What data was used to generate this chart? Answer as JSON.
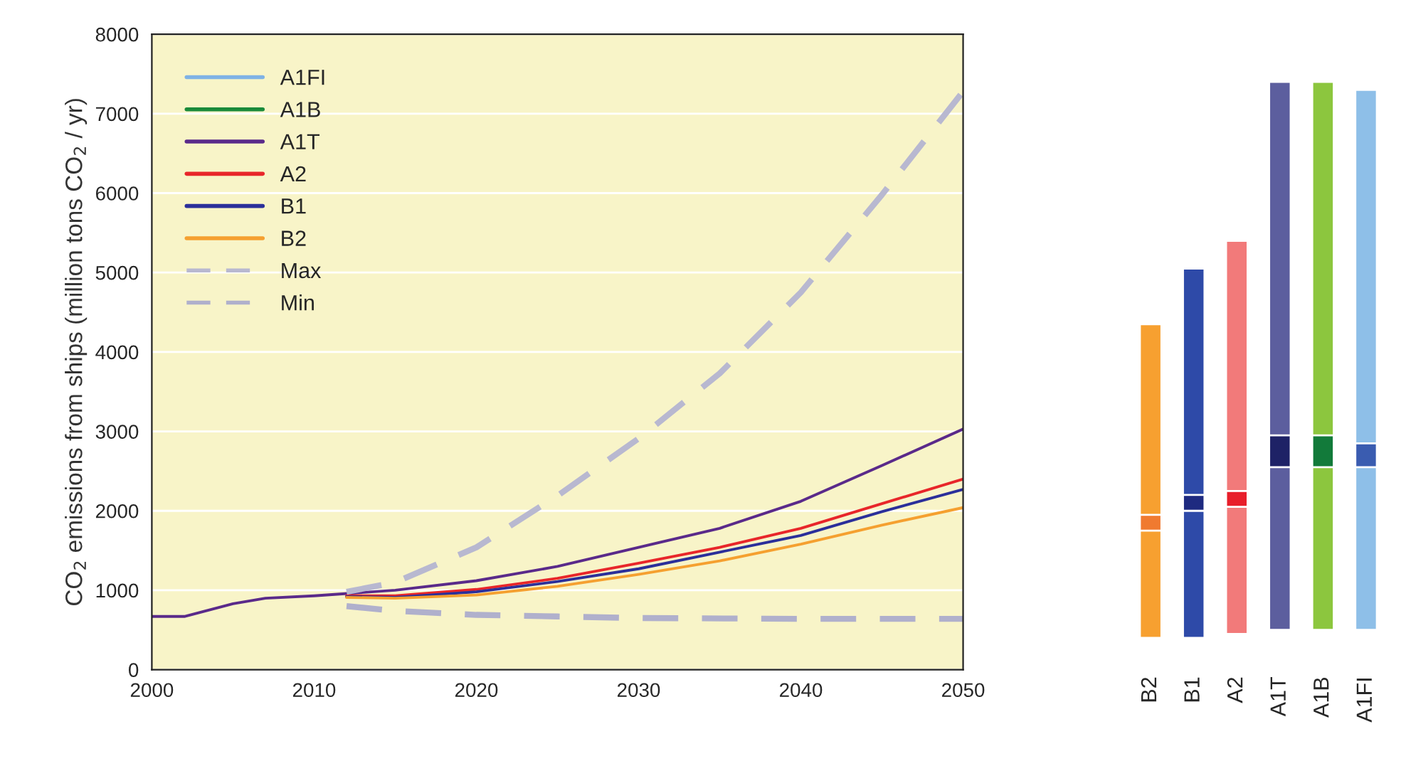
{
  "chart_data": [
    {
      "type": "line",
      "ylabel": "CO$_{2}$ emissions from ships (million tons CO$_{2}$ / yr)",
      "xlim": [
        2000,
        2050
      ],
      "xticks": [
        2000,
        2010,
        2020,
        2030,
        2040,
        2050
      ],
      "ylim": [
        0,
        8000
      ],
      "yticks": [
        0,
        1000,
        2000,
        3000,
        4000,
        5000,
        6000,
        7000,
        8000
      ],
      "grid": "y",
      "legend": "top left",
      "series": [
        {
          "name": "A1FI",
          "color": "#7fb2e5"
        },
        {
          "name": "A1B",
          "color": "#1a8a3a"
        },
        {
          "name": "A1T",
          "color": "#5a2a8a",
          "x": [
            2000,
            2002,
            2005,
            2007,
            2010,
            2015,
            2020,
            2025,
            2030,
            2035,
            2040,
            2045,
            2050
          ],
          "values": [
            670,
            670,
            830,
            900,
            930,
            1000,
            1120,
            1300,
            1540,
            1780,
            2120,
            2570,
            3030
          ]
        },
        {
          "name": "A2",
          "color": "#e8262a",
          "x": [
            2012,
            2015,
            2020,
            2025,
            2030,
            2035,
            2040,
            2045,
            2050
          ],
          "values": [
            930,
            930,
            1010,
            1150,
            1340,
            1540,
            1780,
            2090,
            2400
          ]
        },
        {
          "name": "B1",
          "color": "#2b2f9a",
          "x": [
            2012,
            2015,
            2020,
            2025,
            2030,
            2035,
            2040,
            2045,
            2050
          ],
          "values": [
            920,
            910,
            980,
            1110,
            1270,
            1480,
            1690,
            1990,
            2270
          ]
        },
        {
          "name": "B2",
          "color": "#f5a030",
          "x": [
            2012,
            2015,
            2020,
            2025,
            2030,
            2035,
            2040,
            2045,
            2050
          ],
          "values": [
            910,
            900,
            940,
            1050,
            1200,
            1370,
            1580,
            1820,
            2040
          ]
        },
        {
          "name": "Max",
          "color": "#b8b8d0",
          "line_style": "dashed",
          "x": [
            2012,
            2015,
            2020,
            2025,
            2030,
            2035,
            2040,
            2045,
            2050
          ],
          "values": [
            980,
            1100,
            1540,
            2190,
            2910,
            3730,
            4750,
            5980,
            7280
          ]
        },
        {
          "name": "Min",
          "color": "#b0b0cc",
          "line_style": "dashed",
          "x": [
            2012,
            2015,
            2020,
            2025,
            2030,
            2040,
            2050
          ],
          "values": [
            800,
            740,
            690,
            670,
            650,
            640,
            640
          ]
        }
      ]
    },
    {
      "type": "bar",
      "categories": [
        "B2",
        "B1",
        "A2",
        "A1T",
        "A1B",
        "A1FI"
      ],
      "ylim": [
        0,
        8000
      ],
      "tick_labels": "x",
      "series": [
        {
          "colors": [
            "#f7a030",
            "#2e4aa8",
            "#f27a7a",
            "#5c5e9e",
            "#8cc63e",
            "#8ebfe8"
          ],
          "base": [
            400,
            400,
            450,
            500,
            500,
            500
          ],
          "values": [
            3950,
            4650,
            4950,
            6900,
            6900,
            6800
          ]
        },
        {
          "colors": [
            "#f07a30",
            "#1e2a80",
            "#e81e2a",
            "#1e2266",
            "#127a3a",
            "#3a5cb0"
          ],
          "base": [
            1750,
            2000,
            2050,
            2550,
            2550,
            2550
          ],
          "values": [
            200,
            200,
            200,
            400,
            400,
            300
          ]
        }
      ]
    }
  ]
}
